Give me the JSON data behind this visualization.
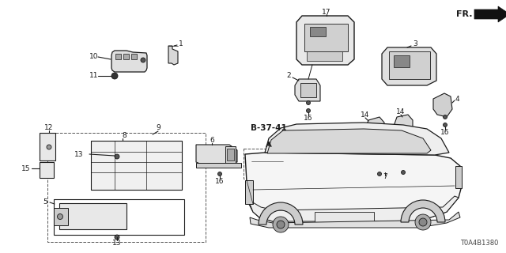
{
  "background_color": "#ffffff",
  "diagram_code": "T0A4B1380",
  "ref_code": "B-37-41",
  "line_color": "#1a1a1a",
  "dashed_color": "#555555",
  "figsize": [
    6.4,
    3.2
  ],
  "dpi": 100
}
